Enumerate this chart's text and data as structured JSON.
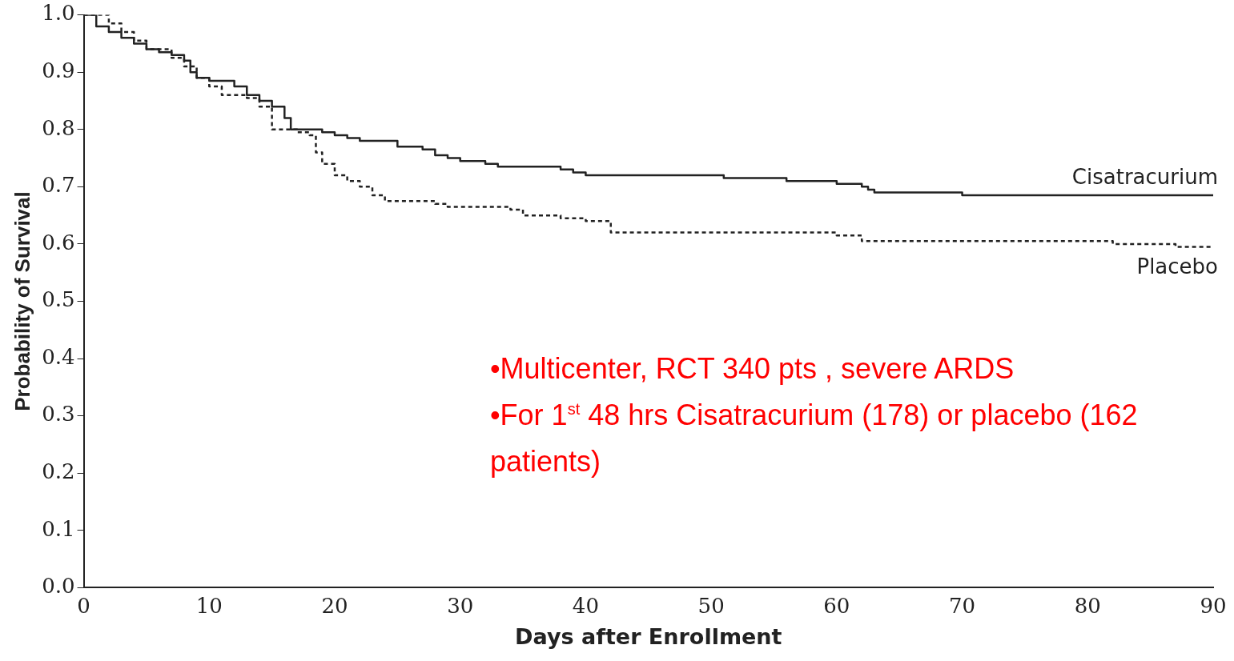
{
  "chart_data": {
    "type": "step",
    "xlabel": "Days after Enrollment",
    "ylabel": "Probability of Survival",
    "xlim": [
      0,
      90
    ],
    "xticks": [
      0,
      10,
      20,
      30,
      40,
      50,
      60,
      70,
      80,
      90
    ],
    "ylim": [
      0,
      1
    ],
    "yticks": [
      {
        "value": 0,
        "label": "0.0"
      },
      {
        "value": 0.1,
        "label": "0.1"
      },
      {
        "value": 0.2,
        "label": "0.2"
      },
      {
        "value": 0.3,
        "label": "0.3"
      },
      {
        "value": 0.4,
        "label": "0.4"
      },
      {
        "value": 0.5,
        "label": "0.5"
      },
      {
        "value": 0.6,
        "label": "0.6"
      },
      {
        "value": 0.7,
        "label": "0.7"
      },
      {
        "value": 0.8,
        "label": "0.8"
      },
      {
        "value": 0.9,
        "label": "0.9"
      },
      {
        "value": 1,
        "label": "1.0"
      }
    ],
    "grid": false,
    "legend": false,
    "marker": "none",
    "series": [
      {
        "name": "Cisatracurium",
        "color": "#222222",
        "line_style": "solid",
        "x": [
          0,
          1,
          2,
          3,
          4,
          5,
          6,
          7,
          8,
          8.5,
          9,
          10,
          12,
          13,
          14,
          15,
          16,
          16.5,
          18,
          19,
          20,
          21,
          22,
          25,
          27,
          28,
          29,
          30,
          32,
          33,
          38,
          39,
          40,
          51,
          56,
          60,
          62,
          62.5,
          63,
          70,
          90
        ],
        "values": [
          1.0,
          0.98,
          0.97,
          0.96,
          0.95,
          0.94,
          0.935,
          0.93,
          0.92,
          0.9,
          0.89,
          0.885,
          0.875,
          0.86,
          0.85,
          0.84,
          0.82,
          0.8,
          0.8,
          0.795,
          0.79,
          0.785,
          0.78,
          0.77,
          0.765,
          0.755,
          0.75,
          0.745,
          0.74,
          0.735,
          0.73,
          0.725,
          0.72,
          0.715,
          0.71,
          0.705,
          0.7,
          0.695,
          0.69,
          0.685,
          0.685
        ]
      },
      {
        "name": "Placebo",
        "color": "#222222",
        "line_style": "dashed",
        "x": [
          0,
          2,
          3,
          4,
          5,
          7,
          8,
          9,
          10,
          11,
          13,
          14,
          15,
          17,
          18,
          18.5,
          19,
          20,
          21,
          22,
          23,
          24,
          26,
          28,
          29,
          34,
          35,
          38,
          40,
          42,
          60,
          62,
          82,
          87,
          90
        ],
        "values": [
          1.0,
          0.985,
          0.97,
          0.955,
          0.94,
          0.925,
          0.91,
          0.89,
          0.875,
          0.86,
          0.855,
          0.84,
          0.8,
          0.795,
          0.79,
          0.76,
          0.74,
          0.72,
          0.71,
          0.7,
          0.685,
          0.675,
          0.675,
          0.67,
          0.665,
          0.66,
          0.65,
          0.645,
          0.64,
          0.62,
          0.615,
          0.605,
          0.6,
          0.595,
          0.595
        ]
      }
    ],
    "annotations": [
      "•Multicenter, RCT 340 pts , severe ARDS",
      "•For 1$^{st}$ 48 hrs Cisatracurium (178) or placebo (162 patients)"
    ]
  }
}
